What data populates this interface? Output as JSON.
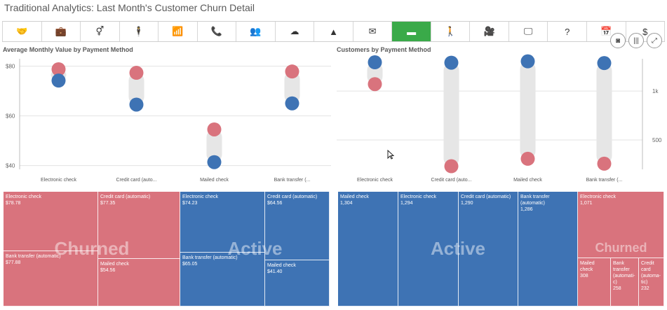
{
  "header": {
    "title": "Traditional Analytics: Last Month's Customer Churn Detail"
  },
  "toolbar": {
    "icons": [
      "handshake-icon",
      "briefcase-icon",
      "gender-icon",
      "person-icon",
      "wifi-icon",
      "phone-icon",
      "group-icon",
      "cloud-upload-icon",
      "warning-icon",
      "mail-icon",
      "credit-card-icon",
      "walking-icon",
      "video-icon",
      "monitor-icon",
      "question-icon",
      "calendar-icon",
      "dollar-icon"
    ],
    "glyphs": [
      "🤝",
      "💼",
      "⚥",
      "🕴",
      "📶",
      "📞",
      "👥",
      "☁",
      "▲",
      "✉",
      "▬",
      "🚶",
      "🎥",
      "🖵",
      "?",
      "📅",
      "$"
    ],
    "active_index": 10,
    "active_color": "#3aaa49"
  },
  "float_buttons": [
    "camera-icon",
    "columns-icon",
    "expand-icon"
  ],
  "float_glyphs": [
    "◙",
    "|||",
    "⤢"
  ],
  "chart_data": [
    {
      "type": "scatter",
      "title": "Average Monthly Value by Payment Method",
      "categories": [
        "Electronic check",
        "Credit card (auto...",
        "Mailed check",
        "Bank transfer (..."
      ],
      "series": [
        {
          "color": "#d9737d",
          "values": [
            78.78,
            77.35,
            54.56,
            77.88
          ]
        },
        {
          "color": "#3e73b4",
          "values": [
            74.23,
            64.56,
            41.4,
            65.05
          ]
        }
      ],
      "yticks": [
        "$80",
        "$60",
        "$40"
      ],
      "ytick_values": [
        80,
        60,
        40
      ],
      "ylim": [
        38.5,
        83
      ]
    },
    {
      "type": "scatter",
      "title": "Customers by Payment Method",
      "categories": [
        "Electronic check",
        "Credit card (auto...",
        "Mailed check",
        "Bank transfer (..."
      ],
      "series": [
        {
          "color": "#3e73b4",
          "values": [
            1294,
            1290,
            1304,
            1286
          ]
        },
        {
          "color": "#d9737d",
          "values": [
            1071,
            232,
            308,
            258
          ]
        }
      ],
      "yticks": [
        "1k",
        "500"
      ],
      "ytick_values": [
        1000,
        500
      ],
      "ylim": [
        200,
        1330
      ]
    }
  ],
  "treemap_left": {
    "groups": [
      {
        "label": "Churned",
        "color": "#d9737d",
        "cells": [
          {
            "label": "Electronic check",
            "value": "$78.78"
          },
          {
            "label": "Credit card (automatic)",
            "value": "$77.35"
          },
          {
            "label": "Bank transfer (automatic)",
            "value": "$77.88"
          },
          {
            "label": "Mailed check",
            "value": "$54.56"
          }
        ]
      },
      {
        "label": "Active",
        "color": "#3e73b4",
        "cells": [
          {
            "label": "Electronic check",
            "value": "$74.23"
          },
          {
            "label": "Credit card (automatic)",
            "value": "$64.56"
          },
          {
            "label": "Bank transfer (automatic)",
            "value": "$65.05"
          },
          {
            "label": "Mailed check",
            "value": "$41.40"
          }
        ]
      }
    ]
  },
  "treemap_right": {
    "groups": [
      {
        "label": "Active",
        "color": "#3e73b4",
        "cells": [
          {
            "label": "Mailed check",
            "value": "1,304"
          },
          {
            "label": "Electronic check",
            "value": "1,294"
          },
          {
            "label": "Credit card (automatic)",
            "value": "1,290"
          },
          {
            "label": "Bank transfer (automatic)",
            "value": "1,286"
          }
        ]
      },
      {
        "label": "Churned",
        "color": "#d9737d",
        "cells": [
          {
            "label": "Electronic check",
            "value": "1,071"
          },
          {
            "label": "Mailed check",
            "value": "308"
          },
          {
            "label": "Bank transfer (automati- c)",
            "value": "258"
          },
          {
            "label": "Credit card (automa- tic)",
            "value": "232"
          }
        ]
      }
    ]
  }
}
